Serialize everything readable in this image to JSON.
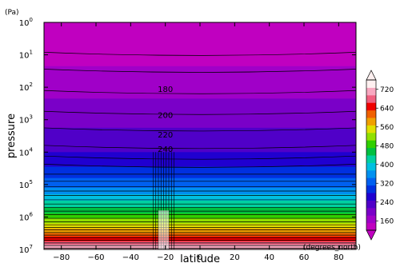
{
  "chart_data": {
    "type": "heatmap",
    "title": "",
    "xlabel": "latitude",
    "ylabel": "pressure",
    "y_unit": "(Pa)",
    "x_unit": "(degrees_north)",
    "xlim": [
      -90,
      90
    ],
    "ylim_log10": [
      0,
      7
    ],
    "y_scale": "log",
    "x_ticks": [
      -80,
      -60,
      -40,
      -20,
      0,
      20,
      40,
      60,
      80
    ],
    "y_tick_exponents": [
      0,
      1,
      2,
      3,
      4,
      5,
      6,
      7
    ],
    "y_tick_base": "10",
    "colorbar": {
      "min": 120,
      "max": 760,
      "ticks": [
        160,
        240,
        320,
        400,
        480,
        560,
        640,
        720
      ],
      "colors": [
        "#c000c0",
        "#a000c8",
        "#7a00c8",
        "#5000c8",
        "#2000d0",
        "#0030e0",
        "#0060f0",
        "#0090f0",
        "#00c0e0",
        "#00d0a0",
        "#00c040",
        "#30d000",
        "#90e000",
        "#e0e000",
        "#f0a000",
        "#f06000",
        "#f00000",
        "#f06080",
        "#f8a8c0",
        "#fff0f0"
      ]
    },
    "contour_labels": [
      {
        "text": "180",
        "lat": -20,
        "log_p": 2.05
      },
      {
        "text": "200",
        "lat": -20,
        "log_p": 2.85
      },
      {
        "text": "220",
        "lat": -20,
        "log_p": 3.45
      },
      {
        "text": "240",
        "lat": -20,
        "log_p": 3.9
      }
    ],
    "temperature_profile": [
      {
        "log_p": 0.5,
        "t": 120
      },
      {
        "log_p": 1.8,
        "t": 170
      },
      {
        "log_p": 2.6,
        "t": 190
      },
      {
        "log_p": 3.2,
        "t": 215
      },
      {
        "log_p": 3.8,
        "t": 235
      },
      {
        "log_p": 4.3,
        "t": 265
      },
      {
        "log_p": 5.0,
        "t": 330
      },
      {
        "log_p": 5.6,
        "t": 420
      },
      {
        "log_p": 6.2,
        "t": 530
      },
      {
        "log_p": 6.6,
        "t": 630
      },
      {
        "log_p": 7.0,
        "t": 730
      }
    ],
    "anomaly_lat_range": [
      -27,
      -15
    ]
  }
}
